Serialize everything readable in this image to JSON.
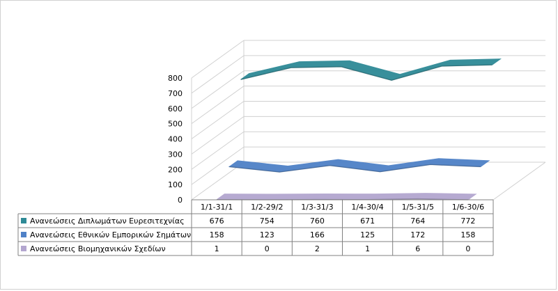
{
  "chart_data": {
    "type": "line",
    "style": "3d-ribbon with data table",
    "categories": [
      "1/1-31/1",
      "1/2-29/2",
      "1/3-31/3",
      "1/4-30/4",
      "1/5-31/5",
      "1/6-30/6"
    ],
    "ylim": [
      0,
      800
    ],
    "yticks": [
      0,
      100,
      200,
      300,
      400,
      500,
      600,
      700,
      800
    ],
    "grid": true,
    "legend": "data-table-left",
    "series": [
      {
        "name": "Ανανεώσεις Διπλωμάτων Ευρεσιτεχνίας",
        "color": "#2e8a96",
        "values": [
          676,
          754,
          760,
          671,
          764,
          772
        ]
      },
      {
        "name": "Ανανεώσεις Εθνικών Εμπορικών Σημάτων",
        "color": "#4f81c7",
        "values": [
          158,
          123,
          166,
          125,
          172,
          158
        ]
      },
      {
        "name": "Ανανεώσεις Βιομηχανικών Σχεδίων",
        "color": "#b3a6cf",
        "values": [
          1,
          0,
          2,
          1,
          6,
          0
        ]
      }
    ]
  }
}
